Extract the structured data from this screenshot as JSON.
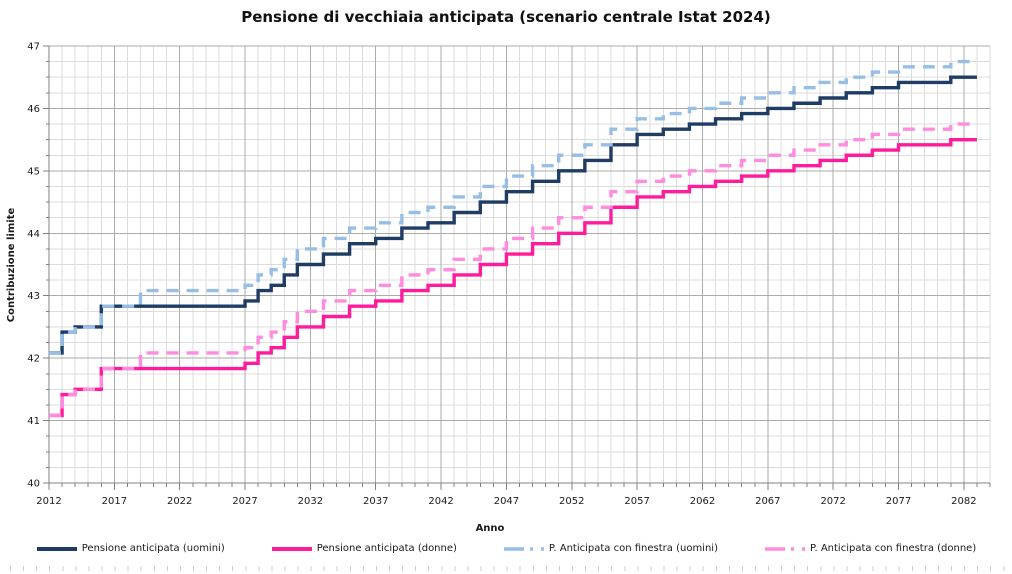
{
  "title": "Pensione di vecchiaia anticipata (scenario centrale Istat 2024)",
  "axes": {
    "x_label": "Anno",
    "y_label": "Contribuzione limite",
    "x_tick_labels": [
      2012,
      2017,
      2022,
      2027,
      2032,
      2037,
      2042,
      2047,
      2052,
      2057,
      2062,
      2067,
      2072,
      2077,
      2082
    ],
    "y_tick_labels": [
      40,
      41,
      42,
      43,
      44,
      45,
      46,
      47
    ],
    "x_range": [
      2012,
      2084
    ],
    "y_range": [
      40,
      47
    ],
    "x_minor_step": 1,
    "x_major_step": 5,
    "y_minor_step": 0.25,
    "y_major_step": 1
  },
  "colors": {
    "uomini": "#1F3D64",
    "donne": "#FF1C9C",
    "finestra_uomini": "#97BFE6",
    "finestra_donne": "#FF8CDE",
    "grid_minor": "#DCDCDC",
    "grid_major": "#ABABAB",
    "axis": "#808080",
    "bottom_tick_row": "#CDCDCD",
    "text": "#1a1a1a"
  },
  "legend": [
    {
      "label": "Pensione anticipata (uomini)",
      "color": "#1F3D64",
      "dashed": false
    },
    {
      "label": "Pensione anticipata (donne)",
      "color": "#FF1C9C",
      "dashed": false
    },
    {
      "label": "P. Anticipata con finestra (uomini)",
      "color": "#97BFE6",
      "dashed": true
    },
    {
      "label": "P. Anticipata con finestra (donne)",
      "color": "#FF8CDE",
      "dashed": true
    }
  ],
  "chart_data": {
    "type": "line",
    "subtype": "step",
    "title": "Pensione di vecchiaia anticipata (scenario centrale Istat 2024)",
    "xlabel": "Anno",
    "ylabel": "Contribuzione limite",
    "xlim": [
      2012,
      2084
    ],
    "ylim": [
      40,
      47
    ],
    "grid": true,
    "legend_position": "bottom",
    "x": [
      2012,
      2013,
      2014,
      2015,
      2016,
      2017,
      2018,
      2019,
      2020,
      2021,
      2022,
      2023,
      2024,
      2025,
      2026,
      2027,
      2028,
      2029,
      2030,
      2031,
      2032,
      2033,
      2034,
      2035,
      2036,
      2037,
      2038,
      2039,
      2040,
      2041,
      2042,
      2043,
      2044,
      2045,
      2046,
      2047,
      2048,
      2049,
      2050,
      2051,
      2052,
      2053,
      2054,
      2055,
      2056,
      2057,
      2058,
      2059,
      2060,
      2061,
      2062,
      2063,
      2064,
      2065,
      2066,
      2067,
      2068,
      2069,
      2070,
      2071,
      2072,
      2073,
      2074,
      2075,
      2076,
      2077,
      2078,
      2079,
      2080,
      2081,
      2082,
      2083
    ],
    "series": [
      {
        "name": "Pensione anticipata (uomini)",
        "color": "#1F3D64",
        "style": "solid",
        "values": [
          42.083,
          42.417,
          42.5,
          42.5,
          42.833,
          42.833,
          42.833,
          42.833,
          42.833,
          42.833,
          42.833,
          42.833,
          42.833,
          42.833,
          42.833,
          42.917,
          43.083,
          43.167,
          43.333,
          43.5,
          43.5,
          43.667,
          43.667,
          43.833,
          43.833,
          43.917,
          43.917,
          44.083,
          44.083,
          44.167,
          44.167,
          44.333,
          44.333,
          44.5,
          44.5,
          44.667,
          44.667,
          44.833,
          44.833,
          45,
          45,
          45.167,
          45.167,
          45.417,
          45.417,
          45.583,
          45.583,
          45.667,
          45.667,
          45.75,
          45.75,
          45.833,
          45.833,
          45.917,
          45.917,
          46,
          46,
          46.083,
          46.083,
          46.167,
          46.167,
          46.25,
          46.25,
          46.333,
          46.333,
          46.417,
          46.417,
          46.417,
          46.417,
          46.5,
          46.5,
          46.5
        ]
      },
      {
        "name": "Pensione anticipata (donne)",
        "color": "#FF1C9C",
        "style": "solid",
        "values": [
          41.083,
          41.417,
          41.5,
          41.5,
          41.833,
          41.833,
          41.833,
          41.833,
          41.833,
          41.833,
          41.833,
          41.833,
          41.833,
          41.833,
          41.833,
          41.917,
          42.083,
          42.167,
          42.333,
          42.5,
          42.5,
          42.667,
          42.667,
          42.833,
          42.833,
          42.917,
          42.917,
          43.083,
          43.083,
          43.167,
          43.167,
          43.333,
          43.333,
          43.5,
          43.5,
          43.667,
          43.667,
          43.833,
          43.833,
          44,
          44,
          44.167,
          44.167,
          44.417,
          44.417,
          44.583,
          44.583,
          44.667,
          44.667,
          44.75,
          44.75,
          44.833,
          44.833,
          44.917,
          44.917,
          45,
          45,
          45.083,
          45.083,
          45.167,
          45.167,
          45.25,
          45.25,
          45.333,
          45.333,
          45.417,
          45.417,
          45.417,
          45.417,
          45.5,
          45.5,
          45.5
        ]
      },
      {
        "name": "P. Anticipata con finestra (uomini)",
        "color": "#97BFE6",
        "style": "dashed",
        "values": [
          42.083,
          42.417,
          42.5,
          42.5,
          42.833,
          42.833,
          42.833,
          43.083,
          43.083,
          43.083,
          43.083,
          43.083,
          43.083,
          43.083,
          43.083,
          43.167,
          43.333,
          43.417,
          43.583,
          43.75,
          43.75,
          43.917,
          43.917,
          44.083,
          44.083,
          44.167,
          44.167,
          44.333,
          44.333,
          44.417,
          44.417,
          44.583,
          44.583,
          44.75,
          44.75,
          44.917,
          44.917,
          45.083,
          45.083,
          45.25,
          45.25,
          45.417,
          45.417,
          45.667,
          45.667,
          45.833,
          45.833,
          45.917,
          45.917,
          46,
          46,
          46.083,
          46.083,
          46.167,
          46.167,
          46.25,
          46.25,
          46.333,
          46.333,
          46.417,
          46.417,
          46.5,
          46.5,
          46.583,
          46.583,
          46.667,
          46.667,
          46.667,
          46.667,
          46.75,
          46.75,
          46.75
        ]
      },
      {
        "name": "P. Anticipata con finestra (donne)",
        "color": "#FF8CDE",
        "style": "dashed",
        "values": [
          41.083,
          41.417,
          41.5,
          41.5,
          41.833,
          41.833,
          41.833,
          42.083,
          42.083,
          42.083,
          42.083,
          42.083,
          42.083,
          42.083,
          42.083,
          42.167,
          42.333,
          42.417,
          42.583,
          42.75,
          42.75,
          42.917,
          42.917,
          43.083,
          43.083,
          43.167,
          43.167,
          43.333,
          43.333,
          43.417,
          43.417,
          43.583,
          43.583,
          43.75,
          43.75,
          43.917,
          43.917,
          44.083,
          44.083,
          44.25,
          44.25,
          44.417,
          44.417,
          44.667,
          44.667,
          44.833,
          44.833,
          44.917,
          44.917,
          45,
          45,
          45.083,
          45.083,
          45.167,
          45.167,
          45.25,
          45.25,
          45.333,
          45.333,
          45.417,
          45.417,
          45.5,
          45.5,
          45.583,
          45.583,
          45.667,
          45.667,
          45.667,
          45.667,
          45.75,
          45.75,
          45.75
        ]
      }
    ]
  }
}
